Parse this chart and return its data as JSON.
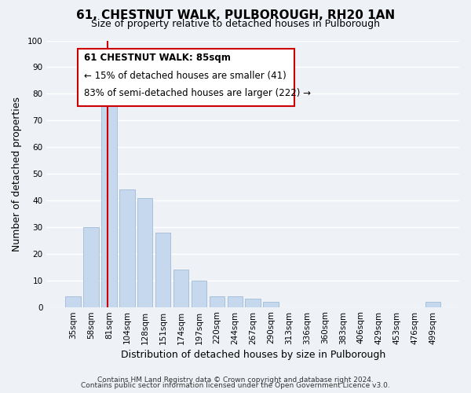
{
  "title": "61, CHESTNUT WALK, PULBOROUGH, RH20 1AN",
  "subtitle": "Size of property relative to detached houses in Pulborough",
  "xlabel": "Distribution of detached houses by size in Pulborough",
  "ylabel": "Number of detached properties",
  "bin_labels": [
    "35sqm",
    "58sqm",
    "81sqm",
    "104sqm",
    "128sqm",
    "151sqm",
    "174sqm",
    "197sqm",
    "220sqm",
    "244sqm",
    "267sqm",
    "290sqm",
    "313sqm",
    "336sqm",
    "360sqm",
    "383sqm",
    "406sqm",
    "429sqm",
    "453sqm",
    "476sqm",
    "499sqm"
  ],
  "bar_heights": [
    4,
    30,
    79,
    44,
    41,
    28,
    14,
    10,
    4,
    4,
    3,
    2,
    0,
    0,
    0,
    0,
    0,
    0,
    0,
    0,
    2
  ],
  "bar_color": "#c5d8ed",
  "bar_edge_color": "#a0bcd8",
  "vline_x": 1.93,
  "vline_color": "#cc0000",
  "annotation_line1": "61 CHESTNUT WALK: 85sqm",
  "annotation_line2": "← 15% of detached houses are smaller (41)",
  "annotation_line3": "83% of semi-detached houses are larger (222) →",
  "ylim": [
    0,
    100
  ],
  "yticks": [
    0,
    10,
    20,
    30,
    40,
    50,
    60,
    70,
    80,
    90,
    100
  ],
  "footer_line1": "Contains HM Land Registry data © Crown copyright and database right 2024.",
  "footer_line2": "Contains public sector information licensed under the Open Government Licence v3.0.",
  "bg_color": "#eef2f7",
  "grid_color": "#ffffff",
  "title_fontsize": 11,
  "subtitle_fontsize": 9,
  "axis_label_fontsize": 9,
  "tick_fontsize": 7.5,
  "annotation_fontsize": 8.5,
  "footer_fontsize": 6.5
}
